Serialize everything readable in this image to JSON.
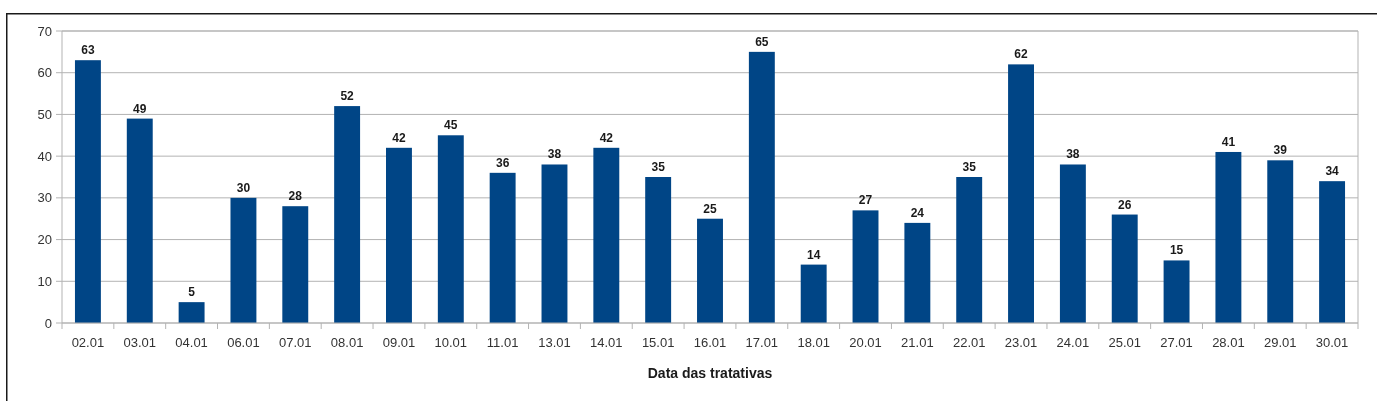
{
  "chart_data": {
    "type": "bar",
    "xlabel": "Data das tratativas",
    "categories": [
      "02.01",
      "03.01",
      "04.01",
      "06.01",
      "07.01",
      "08.01",
      "09.01",
      "10.01",
      "11.01",
      "13.01",
      "14.01",
      "15.01",
      "16.01",
      "17.01",
      "18.01",
      "20.01",
      "21.01",
      "22.01",
      "23.01",
      "24.01",
      "25.01",
      "27.01",
      "28.01",
      "29.01",
      "30.01"
    ],
    "values": [
      63,
      49,
      5,
      30,
      28,
      52,
      42,
      45,
      36,
      38,
      42,
      35,
      25,
      65,
      14,
      27,
      24,
      35,
      62,
      38,
      26,
      15,
      41,
      39,
      34
    ],
    "color": "#004586",
    "ylim": [
      0,
      70
    ],
    "yticks": [
      0,
      10,
      20,
      30,
      40,
      50,
      60,
      70
    ],
    "grid": "y",
    "data_labels": true
  }
}
